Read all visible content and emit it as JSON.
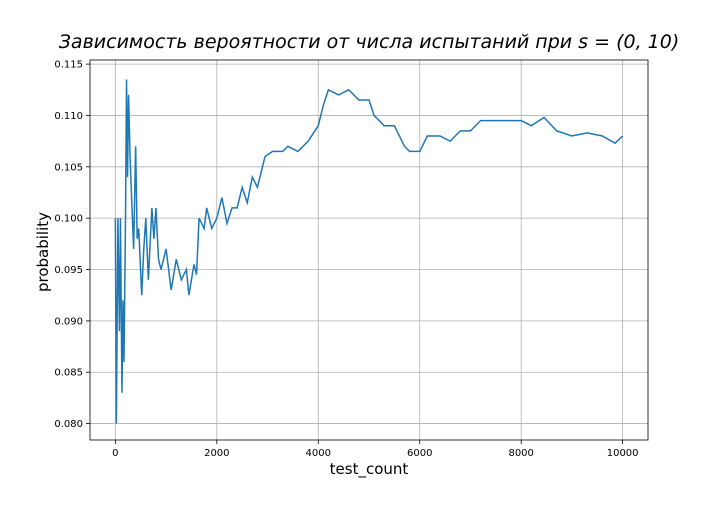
{
  "chart_data": {
    "type": "line",
    "title": "Зависимость вероятности от числа испытаний при s = (0, 10)",
    "x_label": "test_count",
    "y_label": "probability",
    "x": [
      0,
      20,
      50,
      80,
      100,
      130,
      150,
      170,
      200,
      220,
      240,
      260,
      290,
      320,
      360,
      400,
      430,
      460,
      520,
      560,
      600,
      650,
      720,
      760,
      800,
      850,
      900,
      1000,
      1100,
      1200,
      1300,
      1400,
      1450,
      1550,
      1600,
      1650,
      1750,
      1800,
      1900,
      2000,
      2100,
      2200,
      2300,
      2400,
      2500,
      2600,
      2700,
      2800,
      2950,
      3100,
      3300,
      3400,
      3600,
      3800,
      4000,
      4100,
      4200,
      4400,
      4600,
      4800,
      5000,
      5100,
      5300,
      5500,
      5700,
      5800,
      6000,
      6150,
      6400,
      6600,
      6800,
      7000,
      7200,
      7500,
      7800,
      8000,
      8200,
      8450,
      8700,
      9000,
      9300,
      9600,
      9850,
      10000
    ],
    "series": [
      {
        "name": "probability",
        "color": "#1f77b4",
        "values": [
          0.1,
          0.08,
          0.1,
          0.089,
          0.1,
          0.083,
          0.092,
          0.086,
          0.1,
          0.1135,
          0.104,
          0.112,
          0.106,
          0.102,
          0.097,
          0.107,
          0.098,
          0.099,
          0.0925,
          0.097,
          0.1,
          0.094,
          0.101,
          0.098,
          0.101,
          0.096,
          0.095,
          0.097,
          0.093,
          0.096,
          0.094,
          0.095,
          0.0925,
          0.0955,
          0.0945,
          0.1,
          0.099,
          0.101,
          0.099,
          0.1,
          0.102,
          0.0995,
          0.101,
          0.101,
          0.103,
          0.1015,
          0.104,
          0.103,
          0.106,
          0.1065,
          0.1065,
          0.107,
          0.1065,
          0.1075,
          0.109,
          0.111,
          0.1125,
          0.112,
          0.1125,
          0.1115,
          0.1115,
          0.11,
          0.109,
          0.109,
          0.107,
          0.1065,
          0.1065,
          0.108,
          0.108,
          0.1075,
          0.1085,
          0.1085,
          0.1095,
          0.1095,
          0.1095,
          0.1095,
          0.109,
          0.1098,
          0.1085,
          0.108,
          0.1083,
          0.108,
          0.1073,
          0.108
        ]
      }
    ],
    "xlim": [
      -500,
      10500
    ],
    "ylim": [
      0.0784,
      0.1154
    ],
    "xticks": [
      0,
      2000,
      4000,
      6000,
      8000,
      10000
    ],
    "yticks": [
      {
        "value": 0.08,
        "label": "0.080"
      },
      0.085,
      {
        "value": 0.09,
        "label": "0.090"
      },
      0.095,
      {
        "value": 0.1,
        "label": "0.100"
      },
      0.105,
      {
        "value": 0.11,
        "label": "0.110"
      },
      0.115
    ],
    "grid": true
  }
}
